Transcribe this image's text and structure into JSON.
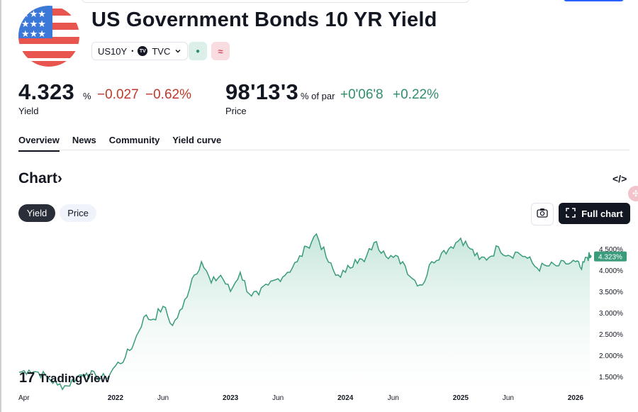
{
  "header": {
    "title": "US Government Bonds 10 YR Yield",
    "symbol": "US10Y",
    "separator": "•",
    "exchange": "TVC",
    "exchange_icon_text": "TV",
    "market_dot": "●",
    "indicator_symbol": "≈"
  },
  "quote": {
    "yield_value": "4.323",
    "yield_unit": "%",
    "yield_change": "−0.027",
    "yield_change_pct": "−0.62%",
    "yield_label": "Yield",
    "price_value": "98'13'3",
    "price_unit": "% of par",
    "price_change": "+0'06'8",
    "price_change_pct": "+0.22%",
    "price_label": "Price"
  },
  "tabs": [
    {
      "label": "Overview",
      "active": true
    },
    {
      "label": "News",
      "active": false
    },
    {
      "label": "Community",
      "active": false
    },
    {
      "label": "Yield curve",
      "active": false
    }
  ],
  "chart_section": {
    "title": "Chart",
    "title_arrow": "›",
    "embed_icon_text": "</>",
    "toggle_yield": "Yield",
    "toggle_price": "Price",
    "full_chart_label": "Full chart",
    "watermark": "TradingView",
    "watermark_logo": "17"
  },
  "colors": {
    "line": "#3a9c7c",
    "fill_top": "#bfe3d6",
    "fill_bottom": "#ffffff",
    "last_badge": "#3a9c7c",
    "negative": "#c0392b",
    "positive": "#2f8f6b"
  },
  "chart_data": {
    "type": "area",
    "title": "",
    "xlabel": "",
    "ylabel": "",
    "x_ticks": [
      {
        "label": "Apr",
        "x": "2021-04-01",
        "bold": false
      },
      {
        "label": "2022",
        "x": "2022-01-01",
        "bold": true
      },
      {
        "label": "Jun",
        "x": "2022-06-01",
        "bold": false
      },
      {
        "label": "2023",
        "x": "2023-01-01",
        "bold": true
      },
      {
        "label": "Jun",
        "x": "2023-06-01",
        "bold": false
      },
      {
        "label": "2024",
        "x": "2024-01-01",
        "bold": true
      },
      {
        "label": "Jun",
        "x": "2024-06-01",
        "bold": false
      },
      {
        "label": "2025",
        "x": "2025-01-01",
        "bold": true
      },
      {
        "label": "Jun",
        "x": "2025-06-01",
        "bold": false
      },
      {
        "label": "2026",
        "x": "2026-01-01",
        "bold": true
      }
    ],
    "y_ticks": [
      "4.500%",
      "4.000%",
      "3.500%",
      "3.000%",
      "2.500%",
      "2.000%",
      "1.500%"
    ],
    "y_tick_values": [
      4.5,
      4.0,
      3.5,
      3.0,
      2.5,
      2.0,
      1.5
    ],
    "x_range": [
      "2021-03-01",
      "2026-02-15"
    ],
    "ylim": [
      1.25,
      4.95
    ],
    "last_value_label": "4.323%",
    "last_value": 4.323,
    "series": [
      {
        "points": [
          [
            "2021-03-01",
            1.6
          ],
          [
            "2021-04-01",
            1.65
          ],
          [
            "2021-05-01",
            1.6
          ],
          [
            "2021-06-01",
            1.47
          ],
          [
            "2021-07-01",
            1.3
          ],
          [
            "2021-08-01",
            1.28
          ],
          [
            "2021-09-01",
            1.5
          ],
          [
            "2021-10-01",
            1.58
          ],
          [
            "2021-11-01",
            1.5
          ],
          [
            "2021-12-01",
            1.46
          ],
          [
            "2022-01-01",
            1.75
          ],
          [
            "2022-02-01",
            1.95
          ],
          [
            "2022-03-01",
            2.3
          ],
          [
            "2022-04-01",
            2.9
          ],
          [
            "2022-05-01",
            2.85
          ],
          [
            "2022-06-01",
            3.15
          ],
          [
            "2022-07-01",
            2.7
          ],
          [
            "2022-08-01",
            3.1
          ],
          [
            "2022-09-01",
            3.8
          ],
          [
            "2022-10-01",
            4.2
          ],
          [
            "2022-11-01",
            3.7
          ],
          [
            "2022-12-01",
            3.88
          ],
          [
            "2023-01-01",
            3.5
          ],
          [
            "2023-02-01",
            3.95
          ],
          [
            "2023-03-01",
            3.45
          ],
          [
            "2023-04-01",
            3.42
          ],
          [
            "2023-05-01",
            3.65
          ],
          [
            "2023-06-01",
            3.8
          ],
          [
            "2023-07-01",
            3.95
          ],
          [
            "2023-08-01",
            4.2
          ],
          [
            "2023-09-01",
            4.55
          ],
          [
            "2023-10-01",
            4.85
          ],
          [
            "2023-11-01",
            4.3
          ],
          [
            "2023-12-01",
            3.88
          ],
          [
            "2024-01-01",
            3.95
          ],
          [
            "2024-02-01",
            4.25
          ],
          [
            "2024-03-01",
            4.2
          ],
          [
            "2024-04-01",
            4.65
          ],
          [
            "2024-05-01",
            4.45
          ],
          [
            "2024-06-01",
            4.3
          ],
          [
            "2024-07-01",
            4.2
          ],
          [
            "2024-08-01",
            3.8
          ],
          [
            "2024-09-01",
            3.65
          ],
          [
            "2024-10-01",
            4.2
          ],
          [
            "2024-11-01",
            4.4
          ],
          [
            "2024-12-01",
            4.55
          ],
          [
            "2025-01-01",
            4.75
          ],
          [
            "2025-02-01",
            4.5
          ],
          [
            "2025-03-01",
            4.25
          ],
          [
            "2025-04-01",
            4.3
          ],
          [
            "2025-05-01",
            4.55
          ],
          [
            "2025-06-01",
            4.35
          ],
          [
            "2025-07-01",
            4.42
          ],
          [
            "2025-08-01",
            4.28
          ],
          [
            "2025-09-01",
            4.05
          ],
          [
            "2025-10-01",
            4.1
          ],
          [
            "2025-11-01",
            4.1
          ],
          [
            "2025-12-01",
            4.15
          ],
          [
            "2026-01-01",
            4.2
          ],
          [
            "2026-01-20",
            4.02
          ],
          [
            "2026-02-05",
            4.3
          ],
          [
            "2026-02-15",
            4.323
          ]
        ]
      }
    ]
  }
}
